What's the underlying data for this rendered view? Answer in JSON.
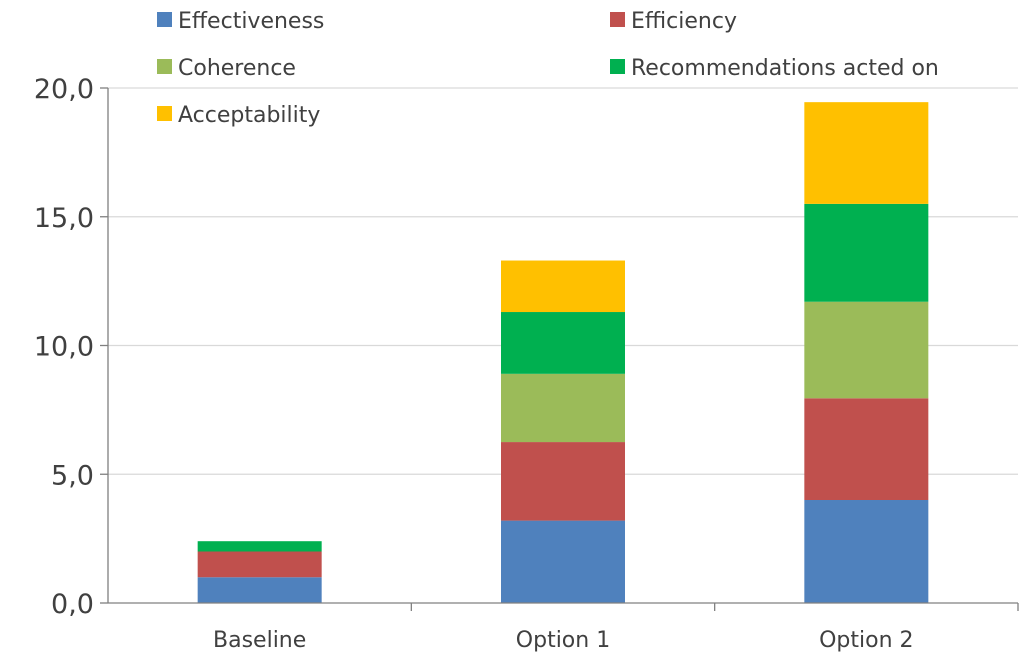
{
  "chart_data": {
    "type": "bar",
    "stacked": true,
    "categories": [
      "Baseline",
      "Option 1",
      "Option 2"
    ],
    "series": [
      {
        "name": "Effectiveness",
        "color": "#4f81bd",
        "values": [
          1.0,
          3.2,
          4.0
        ]
      },
      {
        "name": "Efficiency",
        "color": "#c0504d",
        "values": [
          1.0,
          3.05,
          3.95
        ]
      },
      {
        "name": "Coherence",
        "color": "#9bbb59",
        "values": [
          0.0,
          2.65,
          3.75
        ]
      },
      {
        "name": "Recommendations acted on",
        "color": "#00b050",
        "values": [
          0.4,
          2.4,
          3.8
        ]
      },
      {
        "name": "Acceptability",
        "color": "#ffc000",
        "values": [
          0.0,
          2.0,
          3.95
        ]
      }
    ],
    "y_ticks": [
      "0,0",
      "5,0",
      "10,0",
      "15,0",
      "20,0"
    ],
    "ylim": [
      0,
      20
    ],
    "y_tick_step": 5,
    "grid": true,
    "legend_position": "top",
    "title": "",
    "xlabel": "",
    "ylabel": ""
  }
}
